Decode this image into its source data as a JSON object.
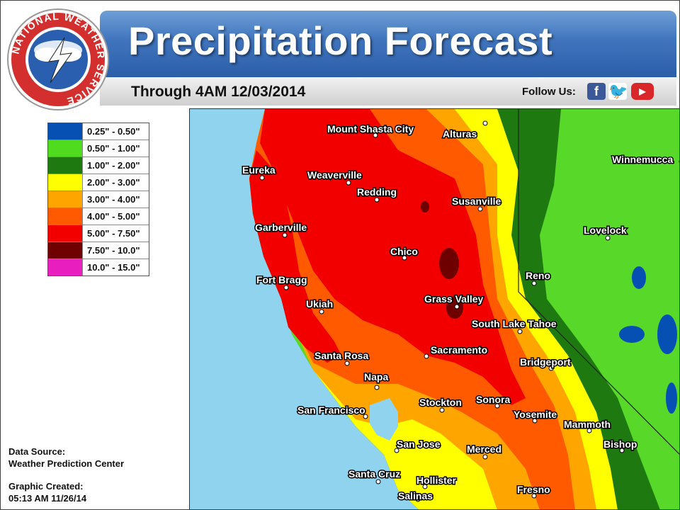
{
  "header": {
    "title": "Precipitation Forecast",
    "subtitle": "Through 4AM 12/03/2014",
    "follow_label": "Follow Us:",
    "social": [
      {
        "name": "facebook-icon",
        "glyph": "f"
      },
      {
        "name": "twitter-icon",
        "glyph": "🐦"
      },
      {
        "name": "youtube-icon",
        "glyph": "▶"
      }
    ]
  },
  "logo": {
    "text": "NATIONAL WEATHER SERVICE"
  },
  "legend": {
    "items": [
      {
        "label": "0.25\" - 0.50\"",
        "color": "#0650b4"
      },
      {
        "label": "0.50\" - 1.00\"",
        "color": "#4fdc1e"
      },
      {
        "label": "1.00\" - 2.00\"",
        "color": "#1e7a10"
      },
      {
        "label": "2.00\" - 3.00\"",
        "color": "#ffff00"
      },
      {
        "label": "3.00\" - 4.00\"",
        "color": "#ffa500"
      },
      {
        "label": "4.00\" - 5.00\"",
        "color": "#ff5a00"
      },
      {
        "label": "5.00\" - 7.50\"",
        "color": "#f20000"
      },
      {
        "label": "7.50\" - 10.0\"",
        "color": "#6e0000"
      },
      {
        "label": "10.0\" - 15.0\"",
        "color": "#e81ebe"
      }
    ]
  },
  "footer": {
    "source_label": "Data Source:",
    "source_value": "Weather Prediction Center",
    "created_label": "Graphic Created:",
    "created_value": "05:13 AM 11/26/14"
  },
  "map": {
    "cities": [
      {
        "name": "Mount Shasta City"
      },
      {
        "name": "Alturas"
      },
      {
        "name": "Eureka"
      },
      {
        "name": "Weaverville"
      },
      {
        "name": "Redding"
      },
      {
        "name": "Susanville"
      },
      {
        "name": "Winnemucca"
      },
      {
        "name": "Garberville"
      },
      {
        "name": "Lovelock"
      },
      {
        "name": "Chico"
      },
      {
        "name": "Reno"
      },
      {
        "name": "Fort Bragg"
      },
      {
        "name": "Grass Valley"
      },
      {
        "name": "Ukiah"
      },
      {
        "name": "South Lake Tahoe"
      },
      {
        "name": "Sacramento"
      },
      {
        "name": "Santa Rosa"
      },
      {
        "name": "Bridgeport"
      },
      {
        "name": "Napa"
      },
      {
        "name": "Stockton"
      },
      {
        "name": "Sonora"
      },
      {
        "name": "San Francisco"
      },
      {
        "name": "Yosemite"
      },
      {
        "name": "Mammoth"
      },
      {
        "name": "Bishop"
      },
      {
        "name": "San Jose"
      },
      {
        "name": "Merced"
      },
      {
        "name": "Santa Cruz"
      },
      {
        "name": "Hollister"
      },
      {
        "name": "Fresno"
      },
      {
        "name": "Salinas"
      }
    ]
  }
}
